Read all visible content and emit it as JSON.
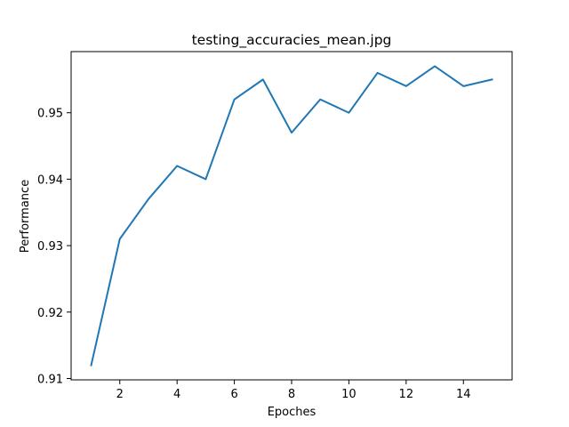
{
  "chart_data": {
    "type": "line",
    "title": "testing_accuracies_mean.jpg",
    "xlabel": "Epoches",
    "ylabel": "Performance",
    "x": [
      1,
      2,
      3,
      4,
      5,
      6,
      7,
      8,
      9,
      10,
      11,
      12,
      13,
      14,
      15
    ],
    "series": [
      {
        "values": [
          0.912,
          0.931,
          0.937,
          0.942,
          0.94,
          0.952,
          0.955,
          0.947,
          0.952,
          0.95,
          0.956,
          0.954,
          0.957,
          0.954,
          0.955
        ],
        "color": "#1f77b4"
      }
    ],
    "xlim": [
      0.3,
      15.7
    ],
    "ylim": [
      0.9098,
      0.9592
    ],
    "xticks": [
      2,
      4,
      6,
      8,
      10,
      12,
      14
    ],
    "xtick_labels": [
      "2",
      "4",
      "6",
      "8",
      "10",
      "12",
      "14"
    ],
    "yticks": [
      0.91,
      0.92,
      0.93,
      0.94,
      0.95
    ],
    "ytick_labels": [
      "0.91",
      "0.92",
      "0.93",
      "0.94",
      "0.95"
    ],
    "grid": false,
    "legend": "none"
  }
}
